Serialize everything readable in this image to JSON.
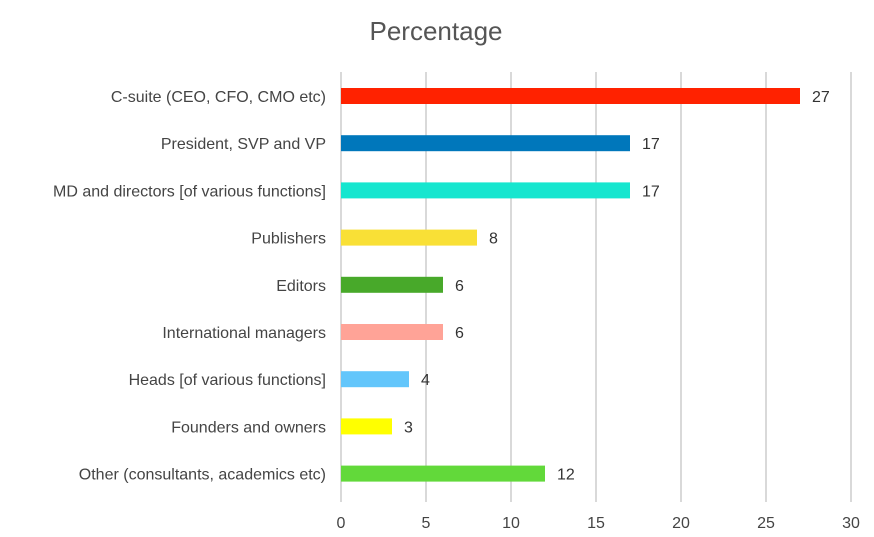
{
  "chart_data": {
    "type": "bar",
    "orientation": "horizontal",
    "title": "Percentage",
    "categories": [
      "C-suite (CEO, CFO, CMO etc)",
      "President, SVP and VP",
      "MD and directors [of various functions]",
      "Publishers",
      "Editors",
      "International managers",
      "Heads [of various functions]",
      "Founders and owners",
      "Other (consultants, academics etc)"
    ],
    "values": [
      27,
      17,
      17,
      8,
      6,
      6,
      4,
      3,
      12
    ],
    "colors": [
      "#ff2200",
      "#0077bb",
      "#16e6cf",
      "#f9e036",
      "#48a92a",
      "#ffa397",
      "#63c6fb",
      "#ffff00",
      "#62d93a"
    ],
    "xlim": [
      0,
      30
    ],
    "xticks": [
      0,
      5,
      10,
      15,
      20,
      25,
      30
    ],
    "xlabel": "",
    "ylabel": "",
    "grid": "vertical",
    "data_labels": true,
    "legend": "none"
  }
}
